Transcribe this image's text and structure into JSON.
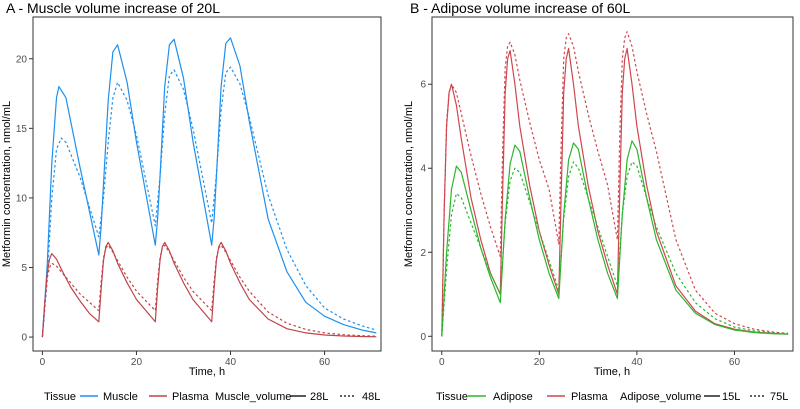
{
  "chart_data": [
    {
      "panel_title": "A - Muscle volume increase of 20L",
      "type": "line",
      "xlabel": "Time, h",
      "ylabel": "Metformin concentration, nmol/mL",
      "xlim": [
        -2,
        72
      ],
      "ylim": [
        -1,
        23
      ],
      "x_ticks": [
        0,
        20,
        40,
        60
      ],
      "y_ticks": [
        0,
        5,
        10,
        15,
        20
      ],
      "dose_times": [
        0,
        12,
        24,
        36
      ],
      "grid": false,
      "legend": {
        "position": "bottom",
        "color_title": "Tissue",
        "linetype_title": "Muscle_volume",
        "color_entries": [
          {
            "label": "Muscle",
            "color": "#1e90ee"
          },
          {
            "label": "Plasma",
            "color": "#c0444a"
          }
        ],
        "linetype_entries": [
          {
            "label": "28L",
            "style": "solid"
          },
          {
            "label": "48L",
            "style": "dotted"
          }
        ]
      },
      "series": [
        {
          "name": "Muscle - 28L",
          "tissue": "Muscle",
          "volume": "28L",
          "color": "#1e90ee",
          "style": "solid",
          "x": [
            0,
            1,
            2,
            3,
            3.5,
            5,
            8,
            12,
            12.5,
            13,
            14,
            15,
            16,
            18,
            20,
            24,
            24.5,
            25,
            26,
            27,
            28,
            30,
            32,
            36,
            36.5,
            37,
            38,
            39,
            40,
            42,
            44,
            48,
            52,
            56,
            60,
            64,
            68,
            71
          ],
          "y": [
            0,
            5,
            12.5,
            17.2,
            18,
            17.2,
            12.2,
            5.9,
            8,
            11,
            17,
            20.5,
            21,
            18.3,
            14,
            6.6,
            8.5,
            11.5,
            18,
            21,
            21.4,
            18.6,
            14.1,
            6.6,
            8.5,
            11.5,
            18,
            21.1,
            21.5,
            19.5,
            15.5,
            8.5,
            4.7,
            2.5,
            1.5,
            0.9,
            0.5,
            0.3
          ]
        },
        {
          "name": "Muscle - 48L",
          "tissue": "Muscle",
          "volume": "48L",
          "color": "#1e90ee",
          "style": "dotted",
          "x": [
            0,
            1,
            2,
            3,
            4,
            5,
            8,
            12,
            13,
            14,
            15,
            16,
            18,
            20,
            24,
            25,
            26,
            27,
            28,
            30,
            32,
            36,
            37,
            38,
            39,
            40,
            42,
            44,
            48,
            52,
            56,
            60,
            64,
            68,
            71
          ],
          "y": [
            0,
            4,
            10,
            13.5,
            14.3,
            14,
            11.5,
            7.2,
            10,
            14,
            17.2,
            18.3,
            17,
            14.5,
            8,
            11.5,
            16,
            18.8,
            19.2,
            17.8,
            15,
            8.2,
            11.7,
            16.3,
            19,
            19.4,
            18.2,
            15.8,
            10.2,
            6.3,
            3.7,
            2.1,
            1.3,
            0.8,
            0.5
          ]
        },
        {
          "name": "Plasma - 28L",
          "tissue": "Plasma",
          "volume": "28L",
          "color": "#c0444a",
          "style": "solid",
          "x": [
            0,
            0.5,
            1,
            1.5,
            2,
            3,
            4,
            6,
            8,
            10,
            12,
            12.5,
            13,
            13.5,
            14,
            15,
            16,
            18,
            20,
            22,
            24,
            24.5,
            25,
            25.5,
            26,
            27,
            28,
            30,
            32,
            34,
            36,
            36.5,
            37,
            37.5,
            38,
            39,
            40,
            42,
            44,
            48,
            52,
            56,
            60,
            64,
            68,
            71
          ],
          "y": [
            0,
            2.5,
            4.5,
            5.6,
            6,
            5.6,
            4.9,
            3.6,
            2.6,
            1.7,
            1.1,
            3.5,
            5.5,
            6.5,
            6.8,
            6.2,
            5.3,
            3.9,
            2.7,
            1.9,
            1.1,
            3.5,
            5.5,
            6.5,
            6.8,
            6.2,
            5.3,
            3.9,
            2.7,
            1.9,
            1.1,
            3.5,
            5.5,
            6.5,
            6.8,
            6.2,
            5.3,
            3.9,
            2.7,
            1.3,
            0.6,
            0.3,
            0.15,
            0.08,
            0.04,
            0.02
          ]
        },
        {
          "name": "Plasma - 48L",
          "tissue": "Plasma",
          "volume": "48L",
          "color": "#c0444a",
          "style": "dotted",
          "x": [
            0,
            0.5,
            1,
            1.5,
            2,
            3,
            4,
            6,
            8,
            10,
            12,
            12.5,
            13,
            13.5,
            14,
            15,
            16,
            18,
            20,
            22,
            24,
            24.5,
            25,
            25.5,
            26,
            27,
            28,
            30,
            32,
            34,
            36,
            36.5,
            37,
            37.5,
            38,
            39,
            40,
            42,
            44,
            48,
            52,
            56,
            60,
            64,
            68,
            71
          ],
          "y": [
            0,
            2.3,
            4.2,
            5,
            5.3,
            5.1,
            4.7,
            3.9,
            3.1,
            2.5,
            1.9,
            4,
            5.7,
            6.4,
            6.6,
            6.1,
            5.5,
            4.3,
            3.3,
            2.6,
            1.9,
            4,
            5.7,
            6.4,
            6.6,
            6.1,
            5.5,
            4.3,
            3.3,
            2.6,
            1.9,
            4,
            5.7,
            6.4,
            6.6,
            6.1,
            5.5,
            4.3,
            3.3,
            1.8,
            1,
            0.55,
            0.3,
            0.17,
            0.1,
            0.06
          ]
        }
      ]
    },
    {
      "panel_title": "B - Adipose volume increase of 60L",
      "type": "line",
      "xlabel": "Time, h",
      "ylabel": "Metformin concentration, nmol/mL",
      "xlim": [
        -2,
        72
      ],
      "ylim": [
        -0.35,
        7.6
      ],
      "x_ticks": [
        0,
        20,
        40,
        60
      ],
      "y_ticks": [
        0,
        2,
        4,
        6
      ],
      "dose_times": [
        0,
        12,
        24,
        36
      ],
      "grid": false,
      "legend": {
        "position": "bottom",
        "color_title": "Tissue",
        "linetype_title": "Adipose_volume",
        "color_entries": [
          {
            "label": "Adipose",
            "color": "#2db52d"
          },
          {
            "label": "Plasma",
            "color": "#d0464e"
          }
        ],
        "linetype_entries": [
          {
            "label": "15L",
            "style": "solid"
          },
          {
            "label": "75L",
            "style": "dotted"
          }
        ]
      },
      "series": [
        {
          "name": "Plasma - 15L",
          "tissue": "Plasma",
          "volume": "15L",
          "color": "#d0464e",
          "style": "solid",
          "x": [
            0,
            0.5,
            1,
            1.5,
            2,
            3,
            4,
            6,
            8,
            10,
            12,
            12.5,
            13,
            13.5,
            14,
            15,
            16,
            18,
            20,
            22,
            24,
            24.5,
            25,
            25.5,
            26,
            27,
            28,
            30,
            32,
            34,
            36,
            36.5,
            37,
            37.5,
            38,
            39,
            40,
            42,
            44,
            48,
            52,
            56,
            60,
            64,
            68,
            71
          ],
          "y": [
            0,
            3,
            5,
            5.8,
            6,
            5.5,
            4.7,
            3.3,
            2.3,
            1.5,
            1,
            3.5,
            5.8,
            6.6,
            6.8,
            6,
            5,
            3.6,
            2.5,
            1.7,
            1,
            3.5,
            5.8,
            6.6,
            6.85,
            6,
            5,
            3.6,
            2.5,
            1.7,
            1,
            3.5,
            5.8,
            6.6,
            6.85,
            6,
            5,
            3.6,
            2.5,
            1.2,
            0.6,
            0.3,
            0.17,
            0.1,
            0.07,
            0.05
          ]
        },
        {
          "name": "Plasma - 75L",
          "tissue": "Plasma",
          "volume": "75L",
          "color": "#d0464e",
          "style": "dotted",
          "x": [
            0,
            0.5,
            1,
            1.5,
            2,
            3,
            4,
            6,
            8,
            10,
            12,
            12.5,
            13,
            13.5,
            14,
            15,
            16,
            18,
            20,
            22,
            24,
            24.5,
            25,
            25.5,
            26,
            27,
            28,
            30,
            32,
            34,
            36,
            36.5,
            37,
            37.5,
            38,
            39,
            40,
            42,
            44,
            48,
            52,
            56,
            60,
            64,
            68,
            71
          ],
          "y": [
            0,
            3,
            5.1,
            5.8,
            6,
            5.8,
            5.3,
            4.3,
            3.4,
            2.6,
            1.9,
            4.5,
            6.4,
            6.9,
            7,
            6.7,
            6.1,
            5.1,
            4.2,
            3.5,
            2.2,
            4.7,
            6.6,
            7.1,
            7.2,
            6.9,
            6.3,
            5.3,
            4.4,
            3.6,
            2.3,
            4.8,
            6.6,
            7.1,
            7.25,
            6.9,
            6.3,
            5.3,
            4.4,
            2.3,
            1.1,
            0.55,
            0.3,
            0.17,
            0.1,
            0.07
          ]
        },
        {
          "name": "Adipose - 15L",
          "tissue": "Adipose",
          "volume": "15L",
          "color": "#2db52d",
          "style": "solid",
          "x": [
            0,
            1,
            2,
            3,
            4,
            6,
            8,
            10,
            12,
            13,
            14,
            15,
            16,
            18,
            20,
            22,
            24,
            25,
            26,
            27,
            28,
            30,
            32,
            34,
            36,
            37,
            38,
            39,
            40,
            42,
            44,
            48,
            52,
            56,
            60,
            64,
            68,
            71
          ],
          "y": [
            0,
            2,
            3.5,
            4.05,
            3.9,
            3,
            2.1,
            1.4,
            0.8,
            2.8,
            4.1,
            4.55,
            4.4,
            3.3,
            2.3,
            1.5,
            0.9,
            2.9,
            4.2,
            4.6,
            4.45,
            3.3,
            2.3,
            1.5,
            0.9,
            2.9,
            4.2,
            4.65,
            4.45,
            3.3,
            2.3,
            1.1,
            0.55,
            0.28,
            0.15,
            0.09,
            0.06,
            0.05
          ]
        },
        {
          "name": "Adipose - 75L",
          "tissue": "Adipose",
          "volume": "75L",
          "color": "#2db52d",
          "style": "dotted",
          "x": [
            0,
            1,
            2,
            3,
            4,
            6,
            8,
            10,
            12,
            13,
            14,
            15,
            16,
            18,
            20,
            22,
            24,
            25,
            26,
            27,
            28,
            30,
            32,
            34,
            36,
            37,
            38,
            39,
            40,
            42,
            44,
            48,
            52,
            56,
            60,
            64,
            68,
            71
          ],
          "y": [
            0,
            1.6,
            2.9,
            3.4,
            3.3,
            2.7,
            2.1,
            1.5,
            1,
            2.7,
            3.7,
            4,
            3.9,
            3.2,
            2.5,
            1.8,
            1.1,
            2.8,
            3.8,
            4.15,
            4,
            3.3,
            2.6,
            1.9,
            1.2,
            2.9,
            3.8,
            4.15,
            4.05,
            3.3,
            2.6,
            1.5,
            0.8,
            0.42,
            0.22,
            0.13,
            0.08,
            0.06
          ]
        }
      ]
    }
  ]
}
